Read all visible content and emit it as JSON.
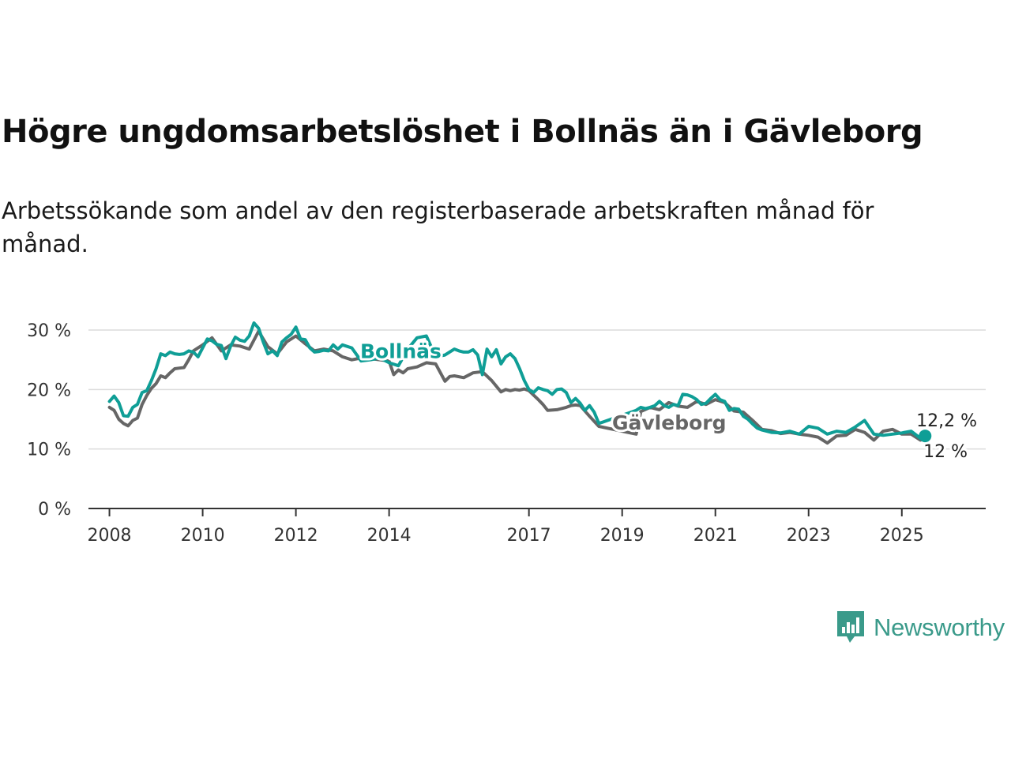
{
  "title": "Högre ungdomsarbetslöshet i Bollnäs än i Gävleborg",
  "subtitle": "Arbetssökande som andel av den registerbaserade arbetskraften månad för månad.",
  "brand": {
    "name": "Newsworthy",
    "color": "#3a9a8a"
  },
  "chart_data": {
    "type": "line",
    "title": "Högre ungdomsarbetslöshet i Bollnäs än i Gävleborg",
    "subtitle": "Arbetssökande som andel av den registerbaserade arbetskraften månad för månad.",
    "xlabel": "",
    "ylabel": "",
    "xlim": [
      2007.55,
      2026.8
    ],
    "ylim": [
      0,
      30
    ],
    "x_ticks": [
      2008,
      2010,
      2012,
      2014,
      2017,
      2019,
      2021,
      2023,
      2025
    ],
    "x_tick_labels": [
      "2008",
      "2010",
      "2012",
      "2014",
      "2017",
      "2019",
      "2021",
      "2023",
      "2025"
    ],
    "y_ticks": [
      0,
      10,
      20,
      30
    ],
    "y_tick_labels": [
      "0 %",
      "10 %",
      "20 %",
      "30 %"
    ],
    "grid": "horizontal",
    "legend": "inline labels",
    "end_labels": [
      "12,2 %",
      "12 %"
    ],
    "series": [
      {
        "name": "Bollnäs",
        "color": "#0f9e96",
        "x": [
          2008.0,
          2008.1,
          2008.2,
          2008.3,
          2008.4,
          2008.5,
          2008.6,
          2008.7,
          2008.8,
          2008.9,
          2009.0,
          2009.1,
          2009.2,
          2009.3,
          2009.4,
          2009.5,
          2009.6,
          2009.7,
          2009.8,
          2009.9,
          2010.0,
          2010.1,
          2010.2,
          2010.3,
          2010.4,
          2010.5,
          2010.6,
          2010.7,
          2010.8,
          2010.9,
          2011.0,
          2011.1,
          2011.2,
          2011.3,
          2011.4,
          2011.5,
          2011.6,
          2011.7,
          2011.8,
          2011.9,
          2012.0,
          2012.1,
          2012.2,
          2012.3,
          2012.4,
          2012.5,
          2012.6,
          2012.7,
          2012.8,
          2012.9,
          2013.0,
          2013.2,
          2013.4,
          2013.6,
          2013.8,
          2014.0,
          2014.2,
          2014.4,
          2014.6,
          2014.8,
          2015.0,
          2015.2,
          2015.4,
          2015.5,
          2015.6,
          2015.7,
          2015.8,
          2015.9,
          2016.0,
          2016.1,
          2016.2,
          2016.3,
          2016.4,
          2016.5,
          2016.6,
          2016.7,
          2016.8,
          2016.9,
          2017.0,
          2017.1,
          2017.2,
          2017.3,
          2017.4,
          2017.5,
          2017.6,
          2017.7,
          2017.8,
          2017.9,
          2018.0,
          2018.1,
          2018.2,
          2018.3,
          2018.4,
          2018.5,
          2019.3,
          2019.4,
          2019.5,
          2019.6,
          2019.7,
          2019.8,
          2019.9,
          2020.0,
          2020.1,
          2020.2,
          2020.3,
          2020.4,
          2020.5,
          2020.6,
          2020.7,
          2020.8,
          2020.9,
          2021.0,
          2021.1,
          2021.2,
          2021.3,
          2021.4,
          2021.5,
          2021.6,
          2021.7,
          2021.8,
          2021.9,
          2022.0,
          2022.2,
          2022.4,
          2022.6,
          2022.8,
          2023.0,
          2023.2,
          2023.4,
          2023.6,
          2023.8,
          2024.0,
          2024.2,
          2024.4,
          2024.6,
          2024.8,
          2025.0,
          2025.2,
          2025.4,
          2025.5
        ],
        "values": [
          18.0,
          18.9,
          17.8,
          15.6,
          15.5,
          17.0,
          17.5,
          19.5,
          19.8,
          21.5,
          23.5,
          26.0,
          25.7,
          26.3,
          26.0,
          25.9,
          26.0,
          26.5,
          26.3,
          25.5,
          27.0,
          28.5,
          28.2,
          27.6,
          27.4,
          25.2,
          27.3,
          28.8,
          28.3,
          28.1,
          29.0,
          31.2,
          30.3,
          28.0,
          26.0,
          26.5,
          25.7,
          28.0,
          28.7,
          29.3,
          30.5,
          28.5,
          28.4,
          27.0,
          26.3,
          26.4,
          26.6,
          26.5,
          27.5,
          26.8,
          27.5,
          27.0,
          24.8,
          25.0,
          25.3,
          24.5,
          24.0,
          26.8,
          28.7,
          29.0,
          25.5,
          25.8,
          26.8,
          26.5,
          26.3,
          26.3,
          26.7,
          25.8,
          22.5,
          26.8,
          25.5,
          26.7,
          24.3,
          25.5,
          26.0,
          25.2,
          23.5,
          21.5,
          20.0,
          19.5,
          20.3,
          20.0,
          19.8,
          19.2,
          20.0,
          20.1,
          19.5,
          17.8,
          18.5,
          17.7,
          16.5,
          17.3,
          16.2,
          14.3,
          16.5,
          17.0,
          16.8,
          17.0,
          17.3,
          18.0,
          17.3,
          17.0,
          17.5,
          17.3,
          19.2,
          19.1,
          18.8,
          18.3,
          17.5,
          17.7,
          18.5,
          19.2,
          18.3,
          18.0,
          16.5,
          16.8,
          16.7,
          15.5,
          15.0,
          14.2,
          13.5,
          13.2,
          12.8,
          12.7,
          13.0,
          12.5,
          13.8,
          13.5,
          12.5,
          13.0,
          12.8,
          13.7,
          14.8,
          12.5,
          12.3,
          12.5,
          12.7,
          13.0,
          11.8,
          12.2
        ]
      },
      {
        "name": "Gävleborg",
        "color": "#666666",
        "x": [
          2008.0,
          2008.1,
          2008.2,
          2008.3,
          2008.4,
          2008.5,
          2008.6,
          2008.7,
          2008.8,
          2008.9,
          2009.0,
          2009.1,
          2009.2,
          2009.3,
          2009.4,
          2009.5,
          2009.6,
          2009.7,
          2009.8,
          2009.9,
          2010.0,
          2010.2,
          2010.4,
          2010.6,
          2010.8,
          2011.0,
          2011.2,
          2011.4,
          2011.6,
          2011.8,
          2012.0,
          2012.2,
          2012.4,
          2012.6,
          2012.8,
          2013.0,
          2013.2,
          2013.4,
          2013.6,
          2013.8,
          2014.0,
          2014.1,
          2014.2,
          2014.3,
          2014.4,
          2014.6,
          2014.8,
          2015.0,
          2015.2,
          2015.3,
          2015.4,
          2015.6,
          2015.8,
          2016.0,
          2016.2,
          2016.4,
          2016.5,
          2016.6,
          2016.7,
          2016.8,
          2016.9,
          2017.0,
          2017.2,
          2017.3,
          2017.4,
          2017.6,
          2017.8,
          2017.9,
          2018.0,
          2018.1,
          2018.2,
          2018.3,
          2018.5,
          2019.3,
          2019.4,
          2019.6,
          2019.8,
          2020.0,
          2020.2,
          2020.4,
          2020.6,
          2020.8,
          2021.0,
          2021.2,
          2021.4,
          2021.6,
          2021.8,
          2022.0,
          2022.2,
          2022.4,
          2022.6,
          2022.8,
          2023.0,
          2023.2,
          2023.4,
          2023.6,
          2023.8,
          2024.0,
          2024.2,
          2024.4,
          2024.6,
          2024.8,
          2025.0,
          2025.2,
          2025.4,
          2025.5
        ],
        "values": [
          17.0,
          16.5,
          15.0,
          14.3,
          13.9,
          14.8,
          15.2,
          17.5,
          19.0,
          20.2,
          21.0,
          22.3,
          22.0,
          22.8,
          23.5,
          23.6,
          23.7,
          25.0,
          26.5,
          27.0,
          27.5,
          28.7,
          26.5,
          27.5,
          27.3,
          26.8,
          29.8,
          27.2,
          26.0,
          28.0,
          29.0,
          27.7,
          26.5,
          26.8,
          26.5,
          25.5,
          25.0,
          25.3,
          25.2,
          25.0,
          24.8,
          22.5,
          23.3,
          22.8,
          23.5,
          23.8,
          24.5,
          24.3,
          21.4,
          22.2,
          22.3,
          22.0,
          22.8,
          23.0,
          21.5,
          19.6,
          20.0,
          19.8,
          20.0,
          19.9,
          20.1,
          19.8,
          18.3,
          17.5,
          16.5,
          16.6,
          17.0,
          17.3,
          17.4,
          17.3,
          16.4,
          15.5,
          13.8,
          12.5,
          16.3,
          17.0,
          16.6,
          17.8,
          17.2,
          17.0,
          18.0,
          17.5,
          18.3,
          17.8,
          16.4,
          16.2,
          14.8,
          13.3,
          13.1,
          12.6,
          12.8,
          12.5,
          12.3,
          12.0,
          11.0,
          12.2,
          12.3,
          13.3,
          12.8,
          11.5,
          13.0,
          13.3,
          12.5,
          12.5,
          11.5,
          12.0
        ]
      }
    ],
    "highlight_points": [
      {
        "series": "Bollnäs",
        "x": 2025.5,
        "y": 12.2
      }
    ]
  }
}
